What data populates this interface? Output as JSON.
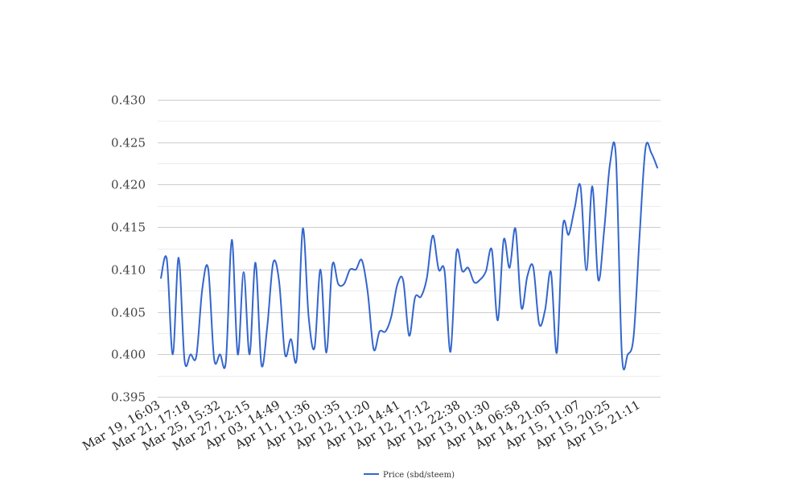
{
  "chart_data": {
    "type": "line",
    "title": "",
    "xlabel": "",
    "ylabel": "",
    "ylim": [
      0.395,
      0.43
    ],
    "yticks": [
      0.395,
      0.4,
      0.405,
      0.41,
      0.415,
      0.42,
      0.425,
      0.43
    ],
    "ytick_labels": [
      "0.395",
      "0.400",
      "0.405",
      "0.410",
      "0.415",
      "0.420",
      "0.425",
      "0.430"
    ],
    "grid": true,
    "legend_position": "bottom-center",
    "x_tick_labels": [
      "Mar 19, 16:03",
      "Mar 21, 17:18",
      "Mar 25, 15:32",
      "Mar 27, 12:15",
      "Apr 03, 14:49",
      "Apr 11, 11:36",
      "Apr 12, 01:35",
      "Apr 12, 11:20",
      "Apr 12, 14:41",
      "Apr 12, 17:12",
      "Apr 12, 22:38",
      "Apr 13, 01:30",
      "Apr 14, 06:58",
      "Apr 14, 21:05",
      "Apr 15, 11:07",
      "Apr 15, 20:25",
      "Apr 15, 21:11"
    ],
    "series": [
      {
        "name": "Price (sbd/steem)",
        "color": "#3366cc",
        "values": [
          0.409,
          0.4112,
          0.4,
          0.4114,
          0.3993,
          0.4,
          0.3998,
          0.4077,
          0.4101,
          0.3995,
          0.4,
          0.3992,
          0.4135,
          0.4,
          0.4097,
          0.4,
          0.4108,
          0.3988,
          0.4033,
          0.4108,
          0.4086,
          0.4,
          0.4018,
          0.3996,
          0.4148,
          0.4044,
          0.4008,
          0.41,
          0.4002,
          0.4105,
          0.4083,
          0.4083,
          0.41,
          0.41,
          0.4111,
          0.4073,
          0.4006,
          0.4027,
          0.4027,
          0.4045,
          0.4082,
          0.4087,
          0.4022,
          0.4067,
          0.4068,
          0.409,
          0.414,
          0.41,
          0.4098,
          0.4003,
          0.412,
          0.4098,
          0.4102,
          0.4085,
          0.4088,
          0.4098,
          0.4123,
          0.404,
          0.4135,
          0.4102,
          0.4148,
          0.4055,
          0.4092,
          0.4103,
          0.4036,
          0.4052,
          0.4097,
          0.4002,
          0.415,
          0.4141,
          0.4172,
          0.4198,
          0.4099,
          0.4198,
          0.4088,
          0.4146,
          0.4225,
          0.4232,
          0.4,
          0.4,
          0.4022,
          0.414,
          0.4243,
          0.4237,
          0.422
        ]
      }
    ]
  }
}
